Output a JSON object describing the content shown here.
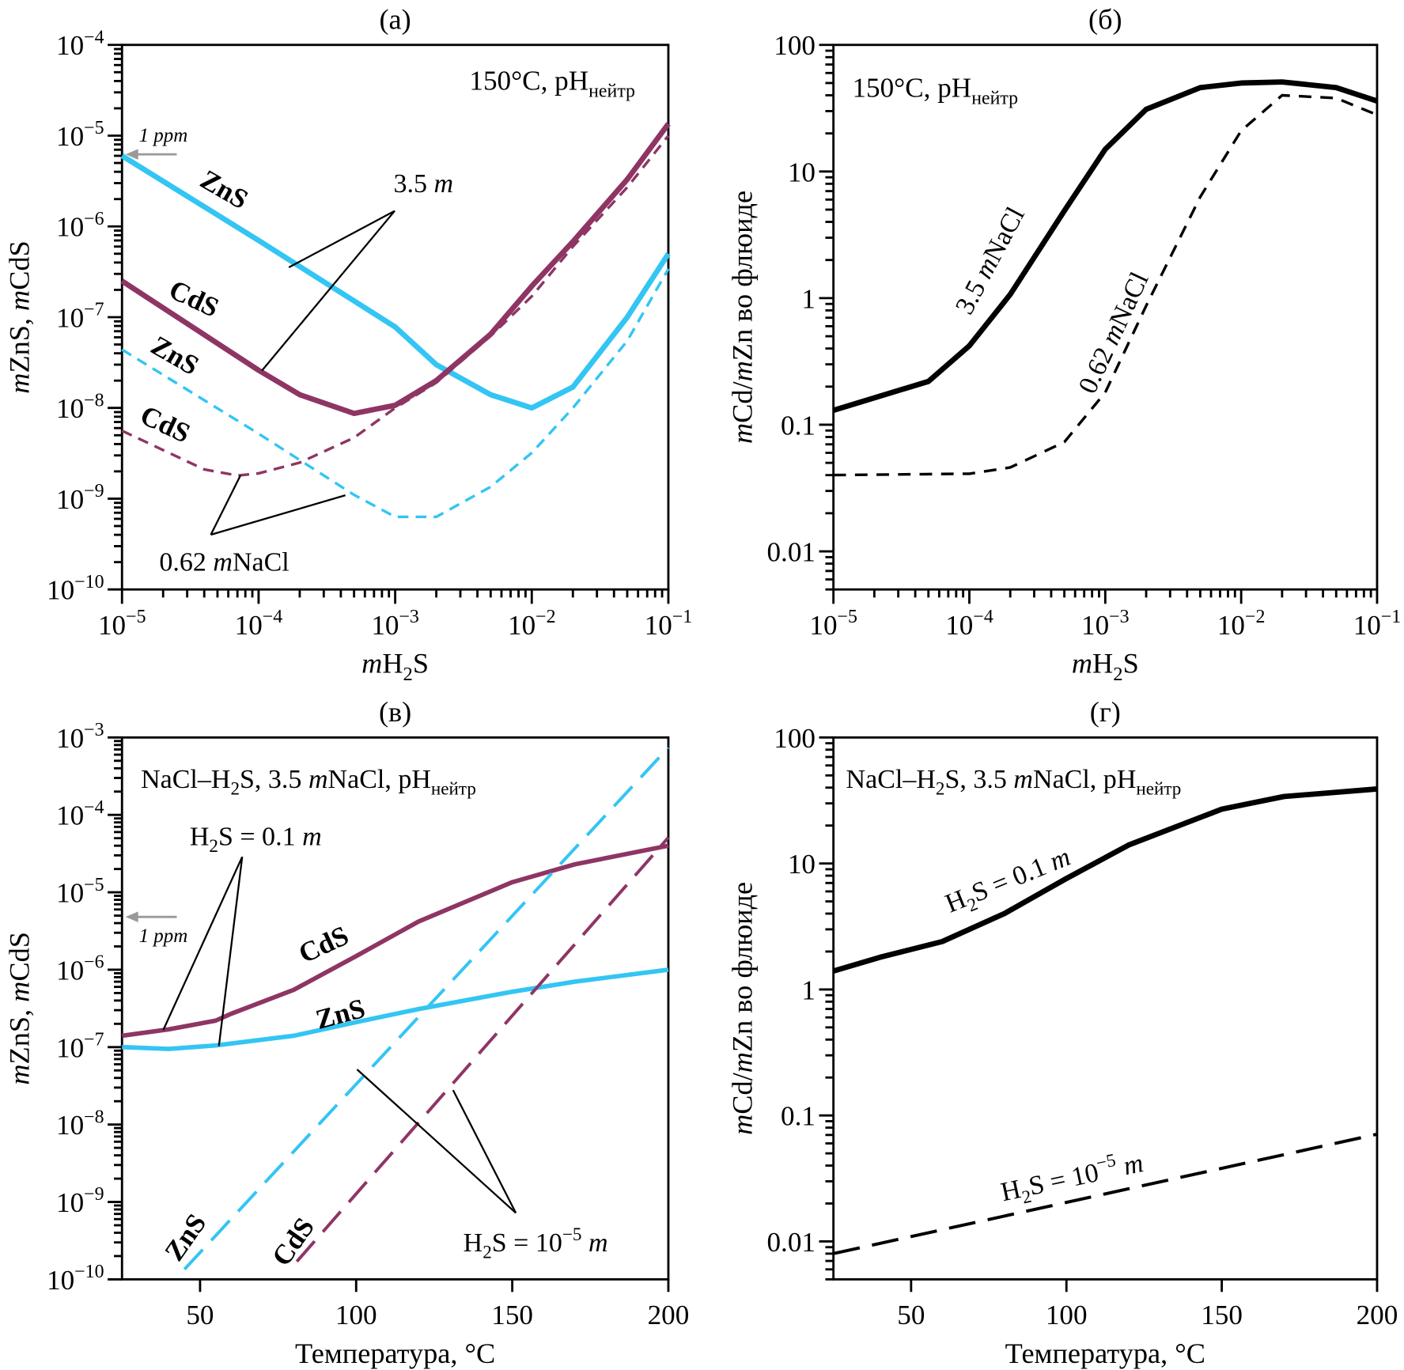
{
  "colors": {
    "zns": "#33c5f3",
    "cds": "#8e3564",
    "black": "#000000",
    "ppm": "#999999"
  },
  "chart_data": [
    {
      "panel": "(a)",
      "type": "line",
      "xscale": "log",
      "yscale": "log",
      "xlim": [
        1e-05,
        0.1
      ],
      "ylim": [
        1e-10,
        0.0001
      ],
      "xlabel": "*m*H_{2}S",
      "ylabel": "*m*ZnS, *m*CdS",
      "xticks": [
        1e-05,
        0.0001,
        0.001,
        0.01,
        0.1
      ],
      "xtick_labels": [
        "10^{−5}",
        "10^{−4}",
        "10^{−3}",
        "10^{−2}",
        "10^{−1}"
      ],
      "yticks": [
        1e-10,
        1e-09,
        1e-08,
        1e-07,
        1e-06,
        1e-05,
        0.0001
      ],
      "ytick_labels": [
        "10^{−10}",
        "10^{−9}",
        "10^{−8}",
        "10^{−7}",
        "10^{−6}",
        "10^{−5}",
        "10^{−4}"
      ],
      "series": [
        {
          "color": "zns",
          "style": "solid",
          "x": [
            1e-05,
            0.0001,
            0.001,
            0.002,
            0.005,
            0.01,
            0.02,
            0.05,
            0.1
          ],
          "y": [
            6e-06,
            7e-07,
            7.8e-08,
            3e-08,
            1.4e-08,
            1e-08,
            1.7e-08,
            1e-07,
            5e-07
          ]
        },
        {
          "color": "cds",
          "style": "solid",
          "x": [
            1e-05,
            0.0001,
            0.0002,
            0.0005,
            0.001,
            0.002,
            0.005,
            0.01,
            0.02,
            0.05,
            0.1
          ],
          "y": [
            2.5e-07,
            2.6e-08,
            1.4e-08,
            8.7e-09,
            1.07e-08,
            2e-08,
            6.5e-08,
            2.2e-07,
            6.8e-07,
            3.3e-06,
            1.35e-05
          ]
        },
        {
          "color": "zns",
          "style": "dashed",
          "x": [
            1e-05,
            0.0001,
            0.0005,
            0.001,
            0.002,
            0.005,
            0.01,
            0.02,
            0.05,
            0.1
          ],
          "y": [
            4.4e-08,
            5.2e-09,
            1.1e-09,
            6.3e-10,
            6.3e-10,
            1.35e-09,
            3.2e-09,
            1e-08,
            5.5e-08,
            3.4e-07
          ]
        },
        {
          "color": "cds",
          "style": "dashed",
          "x": [
            1e-05,
            4e-05,
            7e-05,
            0.0001,
            0.0002,
            0.0005,
            0.001,
            0.002,
            0.005,
            0.01,
            0.02,
            0.05,
            0.1
          ],
          "y": [
            5.6e-09,
            2.1e-09,
            1.8e-09,
            1.9e-09,
            2.5e-09,
            4.7e-09,
            1e-08,
            1.9e-08,
            6.2e-08,
            1.7e-07,
            6e-07,
            2.7e-06,
            1e-05
          ]
        }
      ],
      "annotations": [
        "150°C, pH_{нейтр}",
        "ZnS",
        "CdS",
        "ZnS",
        "CdS",
        "3.5 *m*",
        "0.62 *m*NaCl",
        "1 ppm"
      ]
    },
    {
      "panel": "(б)",
      "type": "line",
      "xscale": "log",
      "yscale": "log",
      "xlim": [
        1e-05,
        0.1
      ],
      "ylim": [
        0.005,
        100
      ],
      "xlabel": "*m*H_{2}S",
      "ylabel": "*m*Cd/*m*Zn во флюиде",
      "xticks": [
        1e-05,
        0.0001,
        0.001,
        0.01,
        0.1
      ],
      "xtick_labels": [
        "10^{−5}",
        "10^{−4}",
        "10^{−3}",
        "10^{−2}",
        "10^{−1}"
      ],
      "yticks": [
        0.01,
        0.1,
        1,
        10,
        100
      ],
      "ytick_labels": [
        "0.01",
        "0.1",
        "1",
        "10",
        "100"
      ],
      "series": [
        {
          "color": "black",
          "style": "solid",
          "x": [
            1e-05,
            5e-05,
            0.0001,
            0.0002,
            0.0005,
            0.001,
            0.002,
            0.005,
            0.01,
            0.02,
            0.05,
            0.1
          ],
          "y": [
            0.13,
            0.22,
            0.42,
            1.07,
            4.9,
            15,
            31,
            46,
            50,
            51,
            46,
            36
          ]
        },
        {
          "color": "black",
          "style": "dashed",
          "x": [
            1e-05,
            0.0001,
            0.0002,
            0.0005,
            0.001,
            0.002,
            0.005,
            0.01,
            0.02,
            0.05,
            0.1
          ],
          "y": [
            0.04,
            0.041,
            0.046,
            0.073,
            0.18,
            0.87,
            6.3,
            21,
            40,
            38,
            28
          ]
        }
      ],
      "annotations": [
        "150°C, pH_{нейтр}",
        "3.5 *m*NaCl",
        "0.62 *m*NaCl"
      ]
    },
    {
      "panel": "(в)",
      "type": "line",
      "xscale": "linear",
      "yscale": "log",
      "xlim": [
        25,
        200
      ],
      "ylim": [
        1e-10,
        0.001
      ],
      "xlabel": "Температура, °C",
      "ylabel": "*m*ZnS, *m*CdS",
      "xticks": [
        50,
        100,
        150,
        200
      ],
      "xtick_labels": [
        "50",
        "100",
        "150",
        "200"
      ],
      "yticks": [
        1e-10,
        1e-09,
        1e-08,
        1e-07,
        1e-06,
        1e-05,
        0.0001,
        0.001
      ],
      "ytick_labels": [
        "10^{−10}",
        "10^{−9}",
        "10^{−8}",
        "10^{−7}",
        "10^{−6}",
        "10^{−5}",
        "10^{−4}",
        "10^{−3}"
      ],
      "series": [
        {
          "color": "cds",
          "style": "solid",
          "x": [
            25,
            40,
            55,
            60,
            80,
            100,
            120,
            150,
            170,
            200
          ],
          "y": [
            1.4e-07,
            1.7e-07,
            2.2e-07,
            2.7e-07,
            5.5e-07,
            1.5e-06,
            4.2e-06,
            1.35e-05,
            2.3e-05,
            4e-05
          ]
        },
        {
          "color": "zns",
          "style": "solid",
          "x": [
            25,
            40,
            55,
            80,
            100,
            120,
            150,
            170,
            200
          ],
          "y": [
            1e-07,
            9.5e-08,
            1.05e-07,
            1.4e-07,
            2.1e-07,
            3.1e-07,
            5.2e-07,
            7e-07,
            1e-06
          ]
        },
        {
          "color": "zns",
          "style": "dashed",
          "x": [
            45,
            200
          ],
          "y": [
            1.35e-10,
            0.00074
          ]
        },
        {
          "color": "cds",
          "style": "dashed",
          "x": [
            81,
            200
          ],
          "y": [
            1.7e-10,
            5.1e-05
          ]
        }
      ],
      "annotations": [
        "NaCl–H_{2}S, 3.5 *m*NaCl, pH_{нейтр}",
        "H_{2}S = 0.1 *m*",
        "CdS",
        "ZnS",
        "1 ppm",
        "ZnS",
        "CdS",
        "H_{2}S = 10^{−5} *m*"
      ]
    },
    {
      "panel": "(г)",
      "type": "line",
      "xscale": "linear",
      "yscale": "log",
      "xlim": [
        25,
        200
      ],
      "ylim": [
        0.005,
        100
      ],
      "xlabel": "Температура, °C",
      "ylabel": "*m*Cd/*m*Zn во флюиде",
      "xticks": [
        50,
        100,
        150,
        200
      ],
      "xtick_labels": [
        "50",
        "100",
        "150",
        "200"
      ],
      "yticks": [
        0.01,
        0.1,
        1,
        10,
        100
      ],
      "ytick_labels": [
        "0.01",
        "0.1",
        "1",
        "10",
        "100"
      ],
      "series": [
        {
          "color": "black",
          "style": "solid",
          "x": [
            25,
            40,
            60,
            80,
            100,
            120,
            150,
            170,
            200
          ],
          "y": [
            1.4,
            1.8,
            2.4,
            4,
            7.6,
            14,
            27,
            34,
            39
          ]
        },
        {
          "color": "black",
          "style": "dashed",
          "x": [
            25,
            200
          ],
          "y": [
            0.008,
            0.071
          ]
        }
      ],
      "annotations": [
        "NaCl–H_{2}S, 3.5 *m*NaCl, pH_{нейтр}",
        "H_{2}S = 0.1 *m*",
        "H_{2}S = 10^{−5} *m*"
      ]
    }
  ]
}
